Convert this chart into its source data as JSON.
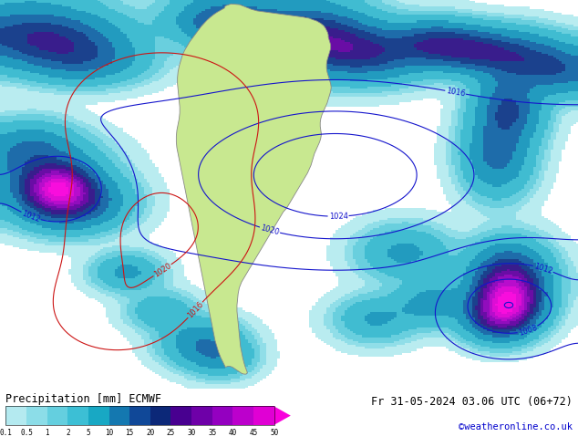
{
  "title_left": "Precipitation [mm] ECMWF",
  "title_right": "Fr 31-05-2024 03.06 UTC (06+72)",
  "credit": "©weatheronline.co.uk",
  "colorbar_labels": [
    "0.1",
    "0.5",
    "1",
    "2",
    "5",
    "10",
    "15",
    "20",
    "25",
    "30",
    "35",
    "40",
    "45",
    "50"
  ],
  "colorbar_colors": [
    "#b4eaf0",
    "#8cdde8",
    "#64cfdf",
    "#3cbfd5",
    "#18a8c4",
    "#1478b0",
    "#104898",
    "#0c2878",
    "#480090",
    "#6e00a8",
    "#9400c0",
    "#bc00cc",
    "#e000d4",
    "#f800dc"
  ],
  "ocean_bg": "#f0f4f8",
  "land_color": "#c8e890",
  "land_edge": "#888888",
  "blue_isobar": "#1414cc",
  "red_isobar": "#cc1414",
  "fig_width": 6.34,
  "fig_height": 4.9,
  "dpi": 100
}
